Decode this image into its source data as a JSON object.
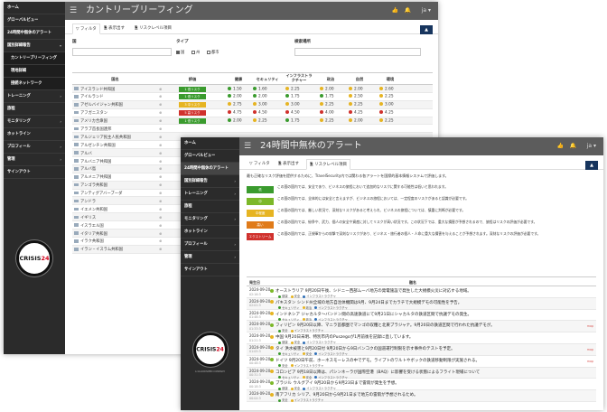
{
  "window1": {
    "title": "カントリーブリーフィング",
    "top_icons": {
      "thumb": "👍",
      "bell": "🔔",
      "lang": "ja ▾"
    },
    "sidebar": {
      "items": [
        {
          "label": "ホーム"
        },
        {
          "label": "グローバルビュー"
        },
        {
          "label": "24時間中無休のアラート"
        },
        {
          "label": "国別詳細報告",
          "caret": "▾"
        },
        {
          "label": "カントリーブリーフィング",
          "sub": true
        },
        {
          "label": "現地詳細",
          "sub": true
        },
        {
          "label": "接続ネットワーク",
          "sub": true
        },
        {
          "label": "トレーニング",
          "caret": "›"
        },
        {
          "label": "旅程"
        },
        {
          "label": "モニタリング",
          "caret": "›"
        },
        {
          "label": "ホットライン"
        },
        {
          "label": "プロフィール",
          "caret": "›"
        },
        {
          "label": "管理",
          "caret": "›"
        },
        {
          "label": "サインアウト"
        }
      ],
      "logo_text": "CRISIS",
      "logo_num": "24"
    },
    "tabs": [
      "▽ フィルタ",
      "🗎 表示出す",
      "🗎 リスクレベル項目"
    ],
    "collapse": "▲",
    "filter": {
      "country_label": "国",
      "type_label": "タイプ",
      "type_options": [
        "国",
        "州",
        "都市"
      ],
      "search_label": "検索場所"
    },
    "headers": {
      "name": "国名",
      "rating": "評価",
      "health": "健康",
      "security": "セキュリティ",
      "infra": "インフラストラクチャー",
      "political": "政治",
      "natural": "自然",
      "environment": "環境"
    },
    "rows": [
      {
        "name": "アイスランド共和国",
        "rating": "1 低リスク",
        "level": "low",
        "scores": [
          "1.50",
          "1.60",
          "2.25",
          "2.00",
          "2.00",
          "2.60"
        ],
        "cols": [
          "g",
          "g",
          "y",
          "y",
          "y",
          "y"
        ]
      },
      {
        "name": "アイルランド",
        "rating": "1 低リスク",
        "level": "low",
        "scores": [
          "2.00",
          "2.00",
          "1.75",
          "1.75",
          "2.50",
          "2.25"
        ],
        "cols": [
          "g",
          "g",
          "g",
          "g",
          "y",
          "y"
        ]
      },
      {
        "name": "アゼルバイジャン共和国",
        "rating": "3 中リスク",
        "level": "med",
        "scores": [
          "2.75",
          "3.00",
          "3.00",
          "2.25",
          "2.25",
          "3.00"
        ],
        "cols": [
          "y",
          "y",
          "y",
          "y",
          "y",
          "y"
        ]
      },
      {
        "name": "アフガニスタン",
        "rating": "5 高リスク",
        "level": "high",
        "scores": [
          "4.75",
          "4.50",
          "4.50",
          "4.00",
          "4.25",
          "4.25"
        ],
        "cols": [
          "r",
          "r",
          "r",
          "r",
          "r",
          "r"
        ]
      },
      {
        "name": "アメリカ合衆国",
        "rating": "1 低リスク",
        "level": "low",
        "scores": [
          "2.00",
          "2.25",
          "1.75",
          "2.25",
          "2.00",
          "2.25"
        ],
        "cols": [
          "g",
          "y",
          "g",
          "y",
          "y",
          "y"
        ]
      },
      {
        "name": "アラブ首長国連邦",
        "rating": "",
        "level": "",
        "scores": [],
        "cols": []
      },
      {
        "name": "アルジェリア民主人民共和国",
        "rating": "",
        "level": "",
        "scores": [],
        "cols": []
      },
      {
        "name": "アルゼンチン共和国",
        "rating": "",
        "level": "",
        "scores": [],
        "cols": []
      },
      {
        "name": "アルバ",
        "rating": "",
        "level": "",
        "scores": [],
        "cols": []
      },
      {
        "name": "アルバニア共和国",
        "rating": "",
        "level": "",
        "scores": [],
        "cols": []
      },
      {
        "name": "アルバ島",
        "rating": "",
        "level": "",
        "scores": [],
        "cols": []
      },
      {
        "name": "アルメニア共和国",
        "rating": "",
        "level": "",
        "scores": [],
        "cols": []
      },
      {
        "name": "アンゴラ共和国",
        "rating": "",
        "level": "",
        "scores": [],
        "cols": []
      },
      {
        "name": "アンティグアバーブーダ",
        "rating": "",
        "level": "",
        "scores": [],
        "cols": []
      },
      {
        "name": "アンドラ",
        "rating": "",
        "level": "",
        "scores": [],
        "cols": []
      },
      {
        "name": "イエメン共和国",
        "rating": "",
        "level": "",
        "scores": [],
        "cols": []
      },
      {
        "name": "イギリス",
        "rating": "",
        "level": "",
        "scores": [],
        "cols": []
      },
      {
        "name": "イスラエル国",
        "rating": "",
        "level": "",
        "scores": [],
        "cols": []
      },
      {
        "name": "イタリア共和国",
        "rating": "",
        "level": "",
        "scores": [],
        "cols": []
      },
      {
        "name": "イラク共和国",
        "rating": "",
        "level": "",
        "scores": [],
        "cols": []
      },
      {
        "name": "イラン・イスラム共和国",
        "rating": "",
        "level": "",
        "scores": [],
        "cols": []
      }
    ]
  },
  "window2": {
    "title": "24時間中無休のアラート",
    "top_icons": {
      "thumb": "👍",
      "bell": "🔔",
      "lang": "ja ▾"
    },
    "sidebar": {
      "items": [
        {
          "label": "ホーム"
        },
        {
          "label": "グローバルビュー"
        },
        {
          "label": "24時間中無休のアラート",
          "active": true
        },
        {
          "label": "国別詳細報告",
          "caret": "›"
        },
        {
          "label": "トレーニング",
          "caret": "›"
        },
        {
          "label": "旅程"
        },
        {
          "label": "モニタリング",
          "caret": "›"
        },
        {
          "label": "ホットライン"
        },
        {
          "label": "プロフィール",
          "caret": "›"
        },
        {
          "label": "管理",
          "caret": "›"
        },
        {
          "label": "サインアウト"
        }
      ],
      "logo_text": "CRISIS",
      "logo_num": "24",
      "tagline": "A GUARDSMEN COMPANY"
    },
    "tabs": [
      "▽ フィルタ",
      "🗎 表示出す",
      "🗎 リスクレベル項目"
    ],
    "collapse": "▲",
    "explanation": "最も正確なリスク評価を提供するために、TravelSecurity内では関わる各アラートを国際的基本情報システムで評価します。",
    "legend": [
      {
        "badge": "低",
        "color": "#3a9b2e",
        "text": "この国の国内では、安全であり、ビジネスの旅程において追加的なリスクに関する可能性は低いと思われます。"
      },
      {
        "badge": "中",
        "color": "#7cb829",
        "text": "この国の国内では、全体的には安全と言えますが、ビジネスの旅程においては、一定程度のリスクがあると認識が必要です。"
      },
      {
        "badge": "中程度",
        "color": "#e6b422",
        "text": "この国の国内では、厳しい状況で、深刻なリスクがあると考えられ、ビジネスの旅程については、慎重に判断が必要です。"
      },
      {
        "badge": "高い",
        "color": "#e07b1a",
        "text": "この国の国内では、紛争や、武力、個人の安全や資産に対してリスクが高い状況です。この状況下では、重大な損害が予想されるので、旅程はリスクの評価が必要です。"
      },
      {
        "badge": "エクストリーム",
        "color": "#d0312d",
        "text": "この国の国内では、正規軍からの攻撃で深刻なリスクがあり、ビジネス・旅行者の個人・人命に重大な損害を与えることが予想されます。深刻なリスクの評価が必要です。"
      }
    ],
    "alert_headers": {
      "date": "発生日",
      "title": "題名"
    },
    "alerts": [
      {
        "date": "2024-09-20",
        "time": "02:16:3",
        "title": "オーストラリア 9月20日午後、シドニー西部ムーバ地方の発電施設で発生した大規模火災に対応する地域。",
        "dot": "#7cb829",
        "tags": [
          "健康",
          "安全",
          "インフラストラクチャ"
        ],
        "map": ""
      },
      {
        "date": "2024-09-20",
        "time": "02:01:3",
        "title": "パキスタン シンド州全域の地方自治体機関は9月、9月24日までカラチで大規模デモの可能性を予告。",
        "dot": "#e6b422",
        "tags": [
          "セキュリティ",
          "政治",
          "インフラストラクチャ"
        ],
        "map": ""
      },
      {
        "date": "2024-09-20",
        "time": "01:48:3",
        "title": "インドネシア ジャカルタ～バンドン間の高速鉄道にて9月21日にシャカルタの鉄道区間で抗議デモの発生。",
        "dot": "#e6b422",
        "tags": [
          "セキュリティ",
          "政治",
          "インフラストラクチャ"
        ],
        "map": ""
      },
      {
        "date": "2024-09-20",
        "time": "01:33:3",
        "title": "フィリピン 9月20日以降、マニラ首都圏でマンゴの収穫と北東ブラジャナ。9月20日の鉄道区間で行われた抗議デモが。",
        "dot": "#7cb829",
        "tags": [
          "安全",
          "インフラストラクチャ"
        ],
        "map": "map"
      },
      {
        "date": "2024-09-20",
        "time": "01:21:3",
        "title": "中国 9月20日未明、特別市内のPuszegoが1月前後を記録に直しています。",
        "dot": "#e6b422",
        "tags": [
          "健康",
          "安全",
          "インフラストラクチャ"
        ],
        "map": ""
      },
      {
        "date": "2024-09-20",
        "time": "01:05:3",
        "title": "タイ 洪水被害と9月20日付 9月20日から9日バンコクの国道運行制限を示す事件のテストを予定。",
        "dot": "#e6b422",
        "tags": [
          "セキュリティ",
          "安全",
          "インフラストラクチャ"
        ],
        "map": "map"
      },
      {
        "date": "2024-09-20",
        "time": "00:48:3",
        "title": "ドイツ 9月20日午前、ホーネスモーレスの中でデモ。ライプトのワルトやボックの鉄道移動制限が実施される。",
        "dot": "#7cb829",
        "tags": [
          "安全",
          "インフラストラクチャ"
        ],
        "map": "map"
      },
      {
        "date": "2024-09-20",
        "time": "00:31:3",
        "title": "コロンビア 9月18日以降は、パシンネーラが国際空港（BAQ）に影響を受ける状態によるフライト現場について",
        "dot": "#e6b422",
        "tags": [
          "セキュリティ",
          "安全",
          "インフラストラクチャ"
        ],
        "map": ""
      },
      {
        "date": "2024-09-20",
        "time": "00:18:3",
        "title": "ブラジル ウルグアイ 9月20日から9月23日まで雷雨が発生を予想。",
        "dot": "#7cb829",
        "tags": [
          "健康",
          "安全",
          "インフラストラクチャ"
        ],
        "map": ""
      },
      {
        "date": "2024-09-20",
        "time": "00:04:3",
        "title": "南アフリカ シリア、9月20日から9月21日まで地方の雷雨が予想されるため。",
        "dot": "#e6b422",
        "tags": [
          "安全",
          "インフラストラクチャ"
        ],
        "map": ""
      }
    ]
  }
}
